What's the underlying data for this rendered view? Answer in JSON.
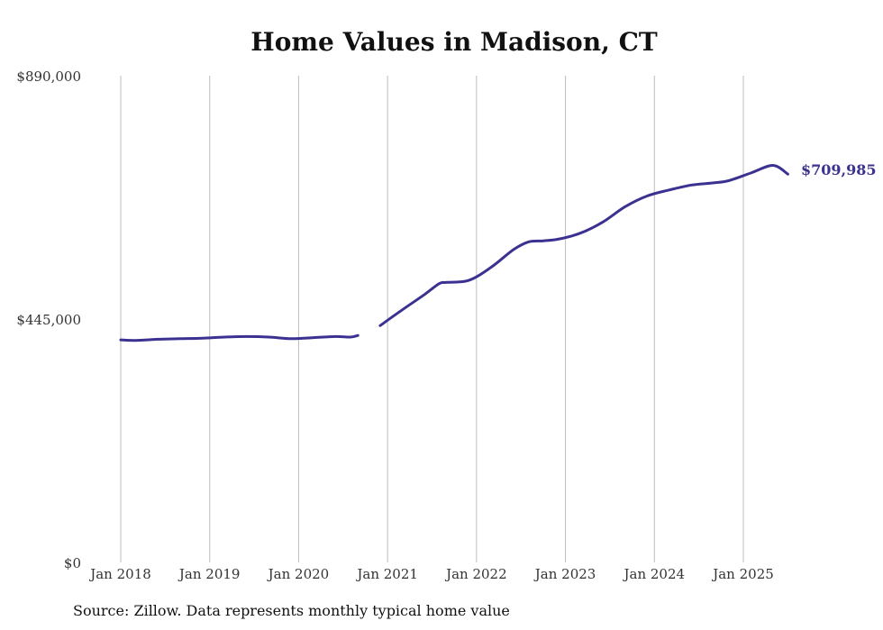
{
  "chart_data": {
    "type": "line",
    "title": "Home Values in Madison, CT",
    "xlabel": "",
    "ylabel": "",
    "ylim": [
      0,
      890000
    ],
    "xlim": [
      "2018-01",
      "2025-07"
    ],
    "y_ticks": [
      "$0",
      "$445,000",
      "$890,000"
    ],
    "x_ticks": [
      "Jan 2018",
      "Jan 2019",
      "Jan 2020",
      "Jan 2021",
      "Jan 2022",
      "Jan 2023",
      "Jan 2024",
      "Jan 2025"
    ],
    "grid": "vertical",
    "line_color": "#3b3191",
    "end_label": "$709,985",
    "source": "Source: Zillow. Data represents monthly typical home value",
    "series": [
      {
        "segments": [
          [
            [
              "2018-01",
              407000
            ],
            [
              "2018-03",
              406000
            ],
            [
              "2018-06",
              408000
            ],
            [
              "2018-09",
              409000
            ],
            [
              "2018-12",
              410000
            ],
            [
              "2019-03",
              412000
            ],
            [
              "2019-06",
              413000
            ],
            [
              "2019-09",
              412000
            ],
            [
              "2019-12",
              409000
            ],
            [
              "2020-03",
              411000
            ],
            [
              "2020-06",
              413000
            ],
            [
              "2020-08",
              412000
            ],
            [
              "2020-09",
              415000
            ]
          ],
          [
            [
              "2020-12",
              433000
            ],
            [
              "2021-03",
              462000
            ],
            [
              "2021-06",
              490000
            ],
            [
              "2021-08",
              510000
            ],
            [
              "2021-09",
              512000
            ],
            [
              "2021-12",
              516000
            ],
            [
              "2022-03",
              540000
            ],
            [
              "2022-06",
              572000
            ],
            [
              "2022-08",
              586000
            ],
            [
              "2022-10",
              588000
            ],
            [
              "2022-12",
              591000
            ],
            [
              "2023-03",
              602000
            ],
            [
              "2023-06",
              622000
            ],
            [
              "2023-09",
              650000
            ],
            [
              "2023-12",
              670000
            ],
            [
              "2024-03",
              681000
            ],
            [
              "2024-06",
              690000
            ],
            [
              "2024-09",
              694000
            ],
            [
              "2024-11",
              698000
            ],
            [
              "2025-02",
              712000
            ],
            [
              "2025-05",
              726000
            ],
            [
              "2025-07",
              709985
            ]
          ]
        ]
      }
    ]
  }
}
